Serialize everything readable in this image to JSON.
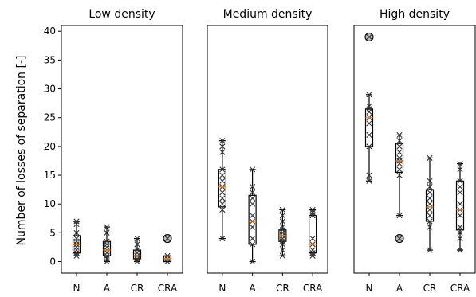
{
  "chart_data": {
    "type": "boxplot",
    "ylabel": "Number of losses of separation [-]",
    "ylim": [
      -2,
      41
    ],
    "yticks": [
      0,
      5,
      10,
      15,
      20,
      25,
      30,
      35,
      40
    ],
    "categories": [
      "N",
      "A",
      "CR",
      "CRA"
    ],
    "colors": {
      "median": "#ff7f0e",
      "box": "#000000",
      "flier_fill": "#bdbdbd"
    },
    "panels": [
      {
        "title": "Low density",
        "groups": [
          {
            "label": "N",
            "whislo": 1,
            "q1": 1.5,
            "med": 3,
            "q3": 4.5,
            "whishi": 7,
            "mean": 3,
            "points": [
              1,
              1.5,
              2,
              2.5,
              3,
              3.5,
              4,
              5,
              6.5,
              7
            ],
            "fliers": []
          },
          {
            "label": "A",
            "whislo": 0,
            "q1": 1,
            "med": 2,
            "q3": 3.5,
            "whishi": 6,
            "mean": 2,
            "points": [
              0,
              0.5,
              1,
              1.5,
              2,
              2.5,
              3,
              3.5,
              5,
              6
            ],
            "fliers": []
          },
          {
            "label": "CR",
            "whislo": 0,
            "q1": 0.5,
            "med": 1,
            "q3": 2,
            "whishi": 4,
            "mean": 1,
            "points": [
              0,
              0.5,
              1,
              1.5,
              2,
              3,
              4
            ],
            "fliers": []
          },
          {
            "label": "CRA",
            "whislo": 0,
            "q1": 0,
            "med": 0.5,
            "q3": 1,
            "whishi": 1,
            "mean": 0.5,
            "points": [
              0,
              0.5,
              1
            ],
            "fliers": [
              4
            ]
          }
        ]
      },
      {
        "title": "Medium density",
        "groups": [
          {
            "label": "N",
            "whislo": 4,
            "q1": 9.5,
            "med": 13,
            "q3": 16,
            "whishi": 21,
            "mean": 12.5,
            "points": [
              4,
              9,
              10,
              11,
              12,
              13,
              14,
              15,
              16,
              19,
              20,
              21
            ],
            "fliers": []
          },
          {
            "label": "A",
            "whislo": 0,
            "q1": 3,
            "med": 7,
            "q3": 11.5,
            "whishi": 16,
            "mean": 7,
            "points": [
              0,
              3,
              4,
              6,
              7,
              8,
              10,
              11,
              12,
              13,
              16
            ],
            "fliers": []
          },
          {
            "label": "CR",
            "whislo": 1,
            "q1": 3.5,
            "med": 4.5,
            "q3": 5.5,
            "whishi": 9,
            "mean": 4.5,
            "points": [
              1,
              2,
              3,
              3.5,
              4,
              4.5,
              5,
              5.5,
              6,
              7,
              8,
              9
            ],
            "fliers": []
          },
          {
            "label": "CRA",
            "whislo": 1,
            "q1": 1.5,
            "med": 3,
            "q3": 8,
            "whishi": 9,
            "mean": 3,
            "points": [
              1,
              1.5,
              2,
              3,
              4,
              8,
              8.5,
              9
            ],
            "fliers": []
          }
        ]
      },
      {
        "title": "High density",
        "groups": [
          {
            "label": "N",
            "whislo": 14,
            "q1": 20,
            "med": 25,
            "q3": 26.5,
            "whishi": 29,
            "mean": 24.5,
            "points": [
              14,
              15,
              20,
              22,
              24,
              25,
              26,
              26.5,
              27,
              29
            ],
            "fliers": [
              39
            ]
          },
          {
            "label": "A",
            "whislo": 8,
            "q1": 15.5,
            "med": 17.5,
            "q3": 20.5,
            "whishi": 22,
            "mean": 17.5,
            "points": [
              8,
              15,
              16,
              17,
              17.5,
              18,
              19,
              20,
              21,
              22
            ],
            "fliers": [
              4
            ]
          },
          {
            "label": "CR",
            "whislo": 2,
            "q1": 7,
            "med": 9.5,
            "q3": 12.5,
            "whishi": 18,
            "mean": 9.5,
            "points": [
              2,
              6,
              7,
              8,
              9,
              10,
              11,
              12,
              13,
              14,
              18
            ],
            "fliers": []
          },
          {
            "label": "CRA",
            "whislo": 2,
            "q1": 5.5,
            "med": 9,
            "q3": 14,
            "whishi": 17,
            "mean": 9,
            "points": [
              2,
              4,
              5,
              6,
              8,
              9,
              10,
              12,
              13,
              14,
              16,
              17
            ],
            "fliers": []
          }
        ]
      }
    ]
  }
}
